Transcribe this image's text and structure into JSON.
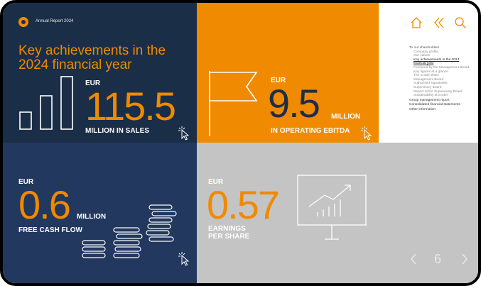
{
  "header": {
    "report_title": "Annual Report 2024",
    "heading": "Key achievements in the 2024 financial year"
  },
  "kpi_sales": {
    "currency": "EUR",
    "value": "115.5",
    "label": "MILLION IN SALES"
  },
  "kpi_ebitda": {
    "currency": "EUR",
    "value": "9.5",
    "unit": "MILLION",
    "label": "IN OPERATING EBITDA"
  },
  "kpi_cashflow": {
    "currency": "EUR",
    "value": "0.6",
    "unit": "MILLION",
    "label": "FREE CASH FLOW"
  },
  "kpi_eps": {
    "currency": "EUR",
    "value": "0.57",
    "label_line1": "EARNINGS",
    "label_line2": "PER SHARE"
  },
  "sidebar": {
    "icons": [
      "home-icon",
      "double-chevron-left-icon",
      "search-icon"
    ],
    "nav": [
      {
        "label": "To our shareholders",
        "level": 0
      },
      {
        "label": "Company profile",
        "level": 1
      },
      {
        "label": "Our values",
        "level": 1
      },
      {
        "label": "Key achievements in the 2024",
        "level": 1,
        "active": true
      },
      {
        "label": "financial year",
        "level": 1,
        "active": true
      },
      {
        "label": "Foreword by the Management Board",
        "level": 1
      },
      {
        "label": "Key figures at a glance",
        "level": 1
      },
      {
        "label": "The ecotel share",
        "level": 1
      },
      {
        "label": "Management Board",
        "level": 1
      },
      {
        "label": "Authorised signatories",
        "level": 1
      },
      {
        "label": "Supervisory Board",
        "level": 1
      },
      {
        "label": "Report of the Supervisory Board",
        "level": 1
      },
      {
        "label": "Sustainability at ecotel",
        "level": 1
      },
      {
        "label": "Group management report",
        "level": 0
      },
      {
        "label": "Consolidated financial statements",
        "level": 0
      },
      {
        "label": "Other information",
        "level": 0
      }
    ]
  },
  "pager": {
    "page": "6"
  },
  "colors": {
    "navy": "#1b2e48",
    "navy_light": "#22385e",
    "orange": "#f08a00",
    "grey": "#c4c4c4"
  }
}
